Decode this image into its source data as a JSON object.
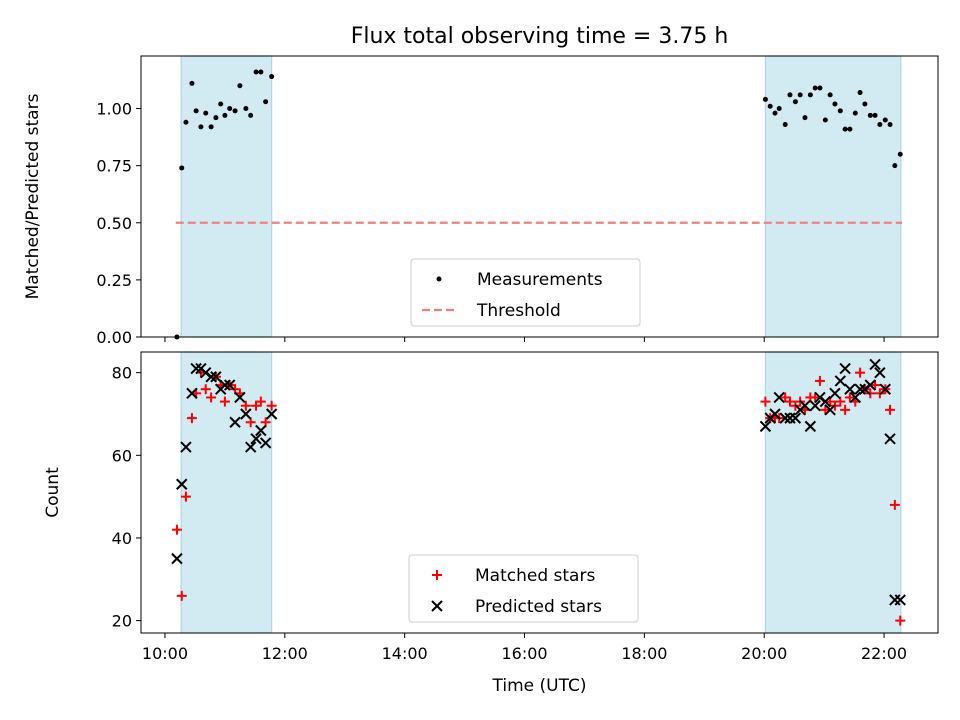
{
  "chart_data": [
    {
      "type": "scatter",
      "title": "Flux total observing time = 3.75 h",
      "xlabel": "",
      "ylabel": "Matched/Predicted stars",
      "xlim": [
        9.6,
        22.9
      ],
      "ylim": [
        0,
        1.23
      ],
      "yticks": [
        0.0,
        0.25,
        0.5,
        0.75,
        1.0
      ],
      "yticklabels": [
        "0.00",
        "0.25",
        "0.50",
        "0.75",
        "1.00"
      ],
      "xticks": [
        10,
        12,
        14,
        16,
        18,
        20,
        22
      ],
      "shaded_intervals": [
        [
          10.27,
          11.78
        ],
        [
          20.02,
          22.28
        ]
      ],
      "shade_color": "#add8e6",
      "threshold": {
        "name": "Threshold",
        "value": 0.5,
        "x_range": [
          10.18,
          22.3
        ],
        "color": "#f08080"
      },
      "series": [
        {
          "name": "Measurements",
          "marker": "dot",
          "color": "#000000",
          "x": [
            10.2,
            10.28,
            10.35,
            10.45,
            10.52,
            10.6,
            10.68,
            10.77,
            10.85,
            10.93,
            11.0,
            11.08,
            11.17,
            11.25,
            11.35,
            11.43,
            11.52,
            11.6,
            11.68,
            11.78,
            20.02,
            20.1,
            20.18,
            20.25,
            20.35,
            20.43,
            20.52,
            20.6,
            20.68,
            20.77,
            20.85,
            20.93,
            21.02,
            21.1,
            21.18,
            21.27,
            21.35,
            21.43,
            21.52,
            21.6,
            21.68,
            21.77,
            21.85,
            21.93,
            22.02,
            22.1,
            22.18,
            22.27
          ],
          "y": [
            0.0,
            0.74,
            0.94,
            1.11,
            0.99,
            0.92,
            0.98,
            0.92,
            0.96,
            1.02,
            0.97,
            1.0,
            0.99,
            1.1,
            1.0,
            0.97,
            1.16,
            1.16,
            1.03,
            1.14,
            1.04,
            1.01,
            0.98,
            1.0,
            0.93,
            1.06,
            1.03,
            1.06,
            0.96,
            1.06,
            1.09,
            1.09,
            0.95,
            1.06,
            1.02,
            0.99,
            0.91,
            0.91,
            0.98,
            1.07,
            1.02,
            0.97,
            0.97,
            0.93,
            0.95,
            0.93,
            0.75,
            0.8
          ]
        }
      ],
      "legend": {
        "position": "lower-center",
        "entries": [
          "Measurements",
          "Threshold"
        ]
      }
    },
    {
      "type": "scatter",
      "title": "",
      "xlabel": "Time (UTC)",
      "ylabel": "Count",
      "xlim": [
        9.6,
        22.9
      ],
      "ylim": [
        17,
        85
      ],
      "yticks": [
        20,
        40,
        60,
        80
      ],
      "xticks": [
        10,
        12,
        14,
        16,
        18,
        20,
        22
      ],
      "xticklabels": [
        "10:00",
        "12:00",
        "14:00",
        "16:00",
        "18:00",
        "20:00",
        "22:00"
      ],
      "shaded_intervals": [
        [
          10.27,
          11.78
        ],
        [
          20.02,
          22.28
        ]
      ],
      "series": [
        {
          "name": "Matched stars",
          "marker": "plus",
          "color": "#ff0000",
          "x": [
            10.2,
            10.28,
            10.35,
            10.45,
            10.52,
            10.6,
            10.68,
            10.77,
            10.85,
            10.93,
            11.0,
            11.08,
            11.17,
            11.25,
            11.35,
            11.43,
            11.52,
            11.6,
            11.68,
            11.78,
            20.02,
            20.1,
            20.18,
            20.25,
            20.35,
            20.43,
            20.52,
            20.6,
            20.68,
            20.77,
            20.85,
            20.93,
            21.02,
            21.1,
            21.18,
            21.27,
            21.35,
            21.43,
            21.52,
            21.6,
            21.68,
            21.77,
            21.85,
            21.93,
            22.02,
            22.1,
            22.18,
            22.27
          ],
          "y": [
            42,
            26,
            50,
            69,
            75,
            80,
            76,
            74,
            79,
            77,
            73,
            77,
            76,
            75,
            72,
            68,
            72,
            73,
            68,
            72,
            73,
            69,
            69,
            69,
            74,
            73,
            72,
            73,
            71,
            74,
            74,
            78,
            71,
            73,
            72,
            73,
            71,
            74,
            73,
            80,
            76,
            75,
            77,
            75,
            76,
            71,
            48,
            20
          ]
        },
        {
          "name": "Predicted stars",
          "marker": "x",
          "color": "#000000",
          "x": [
            10.2,
            10.28,
            10.35,
            10.45,
            10.52,
            10.6,
            10.68,
            10.77,
            10.85,
            10.93,
            11.0,
            11.08,
            11.17,
            11.25,
            11.35,
            11.43,
            11.52,
            11.6,
            11.68,
            11.78,
            20.02,
            20.1,
            20.18,
            20.25,
            20.35,
            20.43,
            20.52,
            20.6,
            20.68,
            20.77,
            20.85,
            20.93,
            21.02,
            21.1,
            21.18,
            21.27,
            21.35,
            21.43,
            21.52,
            21.6,
            21.68,
            21.77,
            21.85,
            21.93,
            22.02,
            22.1,
            22.18,
            22.27
          ],
          "y": [
            35,
            53,
            62,
            75,
            81,
            81,
            80,
            79,
            79,
            76,
            77,
            77,
            68,
            74,
            70,
            62,
            64,
            66,
            63,
            70,
            67,
            69,
            70,
            74,
            69,
            69,
            69,
            71,
            72,
            67,
            72,
            74,
            73,
            71,
            75,
            78,
            81,
            76,
            74,
            76,
            76,
            77,
            82,
            80,
            76,
            64,
            25,
            25
          ]
        }
      ],
      "legend": {
        "position": "lower-center",
        "entries": [
          "Matched stars",
          "Predicted stars"
        ]
      }
    }
  ]
}
